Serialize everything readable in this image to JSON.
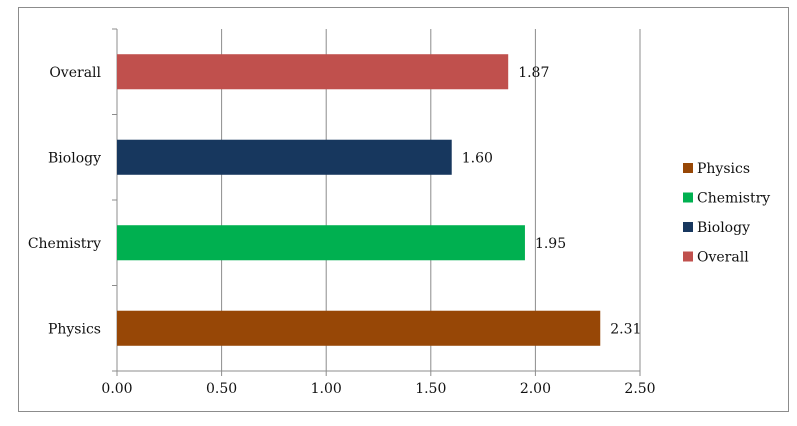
{
  "chart_data": {
    "type": "bar",
    "orientation": "horizontal",
    "categories": [
      "Physics",
      "Chemistry",
      "Biology",
      "Overall"
    ],
    "values": [
      2.31,
      1.95,
      1.6,
      1.87
    ],
    "data_labels": [
      "2.31",
      "1.95",
      "1.60",
      "1.87"
    ],
    "colors": [
      "#974706",
      "#00b050",
      "#17375e",
      "#c0504d"
    ],
    "xlim": [
      0,
      2.5
    ],
    "xticks": [
      "0.00",
      "0.50",
      "1.00",
      "1.50",
      "2.00",
      "2.50"
    ],
    "grid": "vertical",
    "legend": {
      "placement": "right",
      "entries": [
        "Physics",
        "Chemistry",
        "Biology",
        "Overall"
      ]
    },
    "title": "",
    "xlabel": "",
    "ylabel": ""
  }
}
